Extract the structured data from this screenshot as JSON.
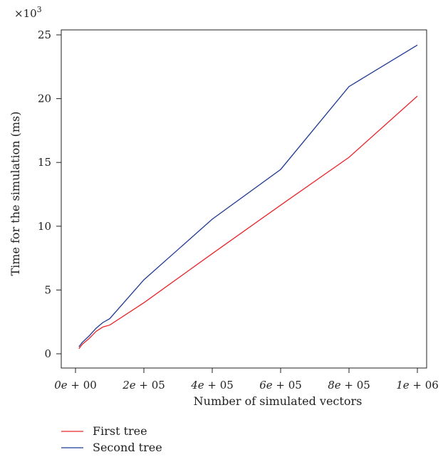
{
  "chart_data": {
    "type": "line",
    "xlabel": "Number of simulated vectors",
    "ylabel": "Time for the simulation (ms)",
    "y_scale_label": "×10",
    "y_scale_exponent": "3",
    "xlim": [
      0,
      1000000
    ],
    "ylim": [
      0,
      25
    ],
    "x_ticks": [
      0,
      200000,
      400000,
      600000,
      800000,
      1000000
    ],
    "x_tick_labels": [
      {
        "mant": "0",
        "exp": "00"
      },
      {
        "mant": "2",
        "exp": "05"
      },
      {
        "mant": "4",
        "exp": "05"
      },
      {
        "mant": "6",
        "exp": "05"
      },
      {
        "mant": "8",
        "exp": "05"
      },
      {
        "mant": "1",
        "exp": "06"
      }
    ],
    "y_ticks": [
      0,
      5,
      10,
      15,
      20,
      25
    ],
    "y_tick_labels": [
      "0",
      "5",
      "10",
      "15",
      "20",
      "25"
    ],
    "grid": false,
    "legend_position": "bottom-left",
    "series": [
      {
        "name": "First tree",
        "color": "#e8262a",
        "x": [
          10000,
          20000,
          40000,
          60000,
          80000,
          100000,
          200000,
          400000,
          600000,
          800000,
          1000000
        ],
        "y": [
          0.4,
          0.75,
          1.2,
          1.75,
          2.1,
          2.25,
          4.0,
          7.85,
          11.65,
          15.4,
          20.2
        ]
      },
      {
        "name": "Second tree",
        "color": "#1f3a93",
        "x": [
          10000,
          20000,
          40000,
          60000,
          80000,
          100000,
          200000,
          400000,
          600000,
          800000,
          1000000
        ],
        "y": [
          0.55,
          0.9,
          1.4,
          2.0,
          2.45,
          2.75,
          5.8,
          10.55,
          14.45,
          20.95,
          24.2
        ]
      }
    ]
  }
}
